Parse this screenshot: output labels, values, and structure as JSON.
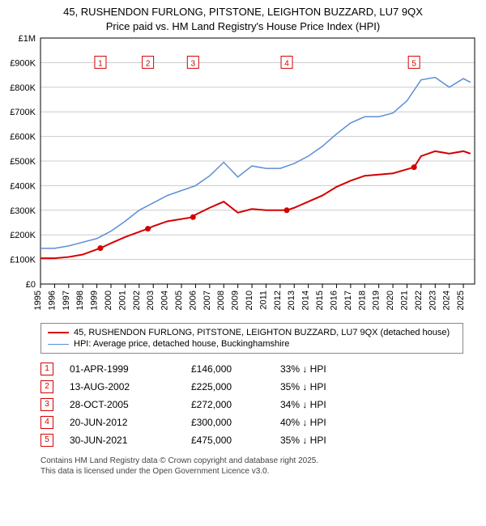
{
  "title_line1": "45, RUSHENDON FURLONG, PITSTONE, LEIGHTON BUZZARD, LU7 9QX",
  "title_line2": "Price paid vs. HM Land Registry's House Price Index (HPI)",
  "chart": {
    "type": "line",
    "background_color": "#ffffff",
    "grid_color": "#cccccc",
    "axis_color": "#000000",
    "font_size_axis": 11,
    "x": {
      "min": 1995,
      "max": 2025.8,
      "ticks": [
        1995,
        1996,
        1997,
        1998,
        1999,
        2000,
        2001,
        2002,
        2003,
        2004,
        2005,
        2006,
        2007,
        2008,
        2009,
        2010,
        2011,
        2012,
        2013,
        2014,
        2015,
        2016,
        2017,
        2018,
        2019,
        2020,
        2021,
        2022,
        2023,
        2024,
        2025
      ]
    },
    "y": {
      "min": 0,
      "max": 1000000,
      "ticks": [
        0,
        100000,
        200000,
        300000,
        400000,
        500000,
        600000,
        700000,
        800000,
        900000,
        1000000
      ],
      "labels": [
        "£0",
        "£100K",
        "£200K",
        "£300K",
        "£400K",
        "£500K",
        "£600K",
        "£700K",
        "£800K",
        "£900K",
        "£1M"
      ]
    },
    "series": [
      {
        "name": "property",
        "color": "#d40000",
        "width": 2,
        "points": [
          [
            1995,
            105000
          ],
          [
            1996,
            105000
          ],
          [
            1997,
            110000
          ],
          [
            1998,
            120000
          ],
          [
            1999.25,
            146000
          ],
          [
            2000,
            166000
          ],
          [
            2001,
            191000
          ],
          [
            2002.62,
            225000
          ],
          [
            2003,
            235000
          ],
          [
            2004,
            255000
          ],
          [
            2005.82,
            272000
          ],
          [
            2006,
            282000
          ],
          [
            2007,
            310000
          ],
          [
            2008,
            335000
          ],
          [
            2009,
            290000
          ],
          [
            2010,
            305000
          ],
          [
            2011,
            300000
          ],
          [
            2012.47,
            300000
          ],
          [
            2013,
            310000
          ],
          [
            2014,
            335000
          ],
          [
            2015,
            360000
          ],
          [
            2016,
            395000
          ],
          [
            2017,
            420000
          ],
          [
            2018,
            440000
          ],
          [
            2019,
            445000
          ],
          [
            2020,
            450000
          ],
          [
            2021.5,
            475000
          ],
          [
            2022,
            520000
          ],
          [
            2023,
            540000
          ],
          [
            2024,
            530000
          ],
          [
            2025,
            540000
          ],
          [
            2025.5,
            530000
          ]
        ]
      },
      {
        "name": "hpi",
        "color": "#5b8fd6",
        "width": 1.5,
        "points": [
          [
            1995,
            145000
          ],
          [
            1996,
            145000
          ],
          [
            1997,
            155000
          ],
          [
            1998,
            170000
          ],
          [
            1999,
            185000
          ],
          [
            2000,
            215000
          ],
          [
            2001,
            255000
          ],
          [
            2002,
            300000
          ],
          [
            2003,
            330000
          ],
          [
            2004,
            360000
          ],
          [
            2005,
            380000
          ],
          [
            2006,
            400000
          ],
          [
            2007,
            440000
          ],
          [
            2008,
            495000
          ],
          [
            2009,
            435000
          ],
          [
            2010,
            480000
          ],
          [
            2011,
            470000
          ],
          [
            2012,
            470000
          ],
          [
            2013,
            490000
          ],
          [
            2014,
            520000
          ],
          [
            2015,
            560000
          ],
          [
            2016,
            610000
          ],
          [
            2017,
            655000
          ],
          [
            2018,
            680000
          ],
          [
            2019,
            680000
          ],
          [
            2020,
            695000
          ],
          [
            2021,
            745000
          ],
          [
            2022,
            830000
          ],
          [
            2023,
            840000
          ],
          [
            2024,
            800000
          ],
          [
            2025,
            835000
          ],
          [
            2025.5,
            820000
          ]
        ]
      }
    ],
    "markers": [
      {
        "n": "1",
        "x": 1999.25,
        "y": 900000,
        "color": "#d40000"
      },
      {
        "n": "2",
        "x": 2002.62,
        "y": 900000,
        "color": "#d40000"
      },
      {
        "n": "3",
        "x": 2005.82,
        "y": 900000,
        "color": "#d40000"
      },
      {
        "n": "4",
        "x": 2012.47,
        "y": 900000,
        "color": "#d40000"
      },
      {
        "n": "5",
        "x": 2021.5,
        "y": 900000,
        "color": "#d40000"
      }
    ],
    "sale_dots_color": "#d40000"
  },
  "legend": [
    {
      "color": "#d40000",
      "width": 2,
      "label": "45, RUSHENDON FURLONG, PITSTONE, LEIGHTON BUZZARD, LU7 9QX (detached house)"
    },
    {
      "color": "#5b8fd6",
      "width": 1.5,
      "label": "HPI: Average price, detached house, Buckinghamshire"
    }
  ],
  "sales": [
    {
      "n": "1",
      "date": "01-APR-1999",
      "price": "£146,000",
      "delta": "33% ↓ HPI"
    },
    {
      "n": "2",
      "date": "13-AUG-2002",
      "price": "£225,000",
      "delta": "35% ↓ HPI"
    },
    {
      "n": "3",
      "date": "28-OCT-2005",
      "price": "£272,000",
      "delta": "34% ↓ HPI"
    },
    {
      "n": "4",
      "date": "20-JUN-2012",
      "price": "£300,000",
      "delta": "40% ↓ HPI"
    },
    {
      "n": "5",
      "date": "30-JUN-2021",
      "price": "£475,000",
      "delta": "35% ↓ HPI"
    }
  ],
  "footer_line1": "Contains HM Land Registry data © Crown copyright and database right 2025.",
  "footer_line2": "This data is licensed under the Open Government Licence v3.0.",
  "marker_color": "#d40000"
}
